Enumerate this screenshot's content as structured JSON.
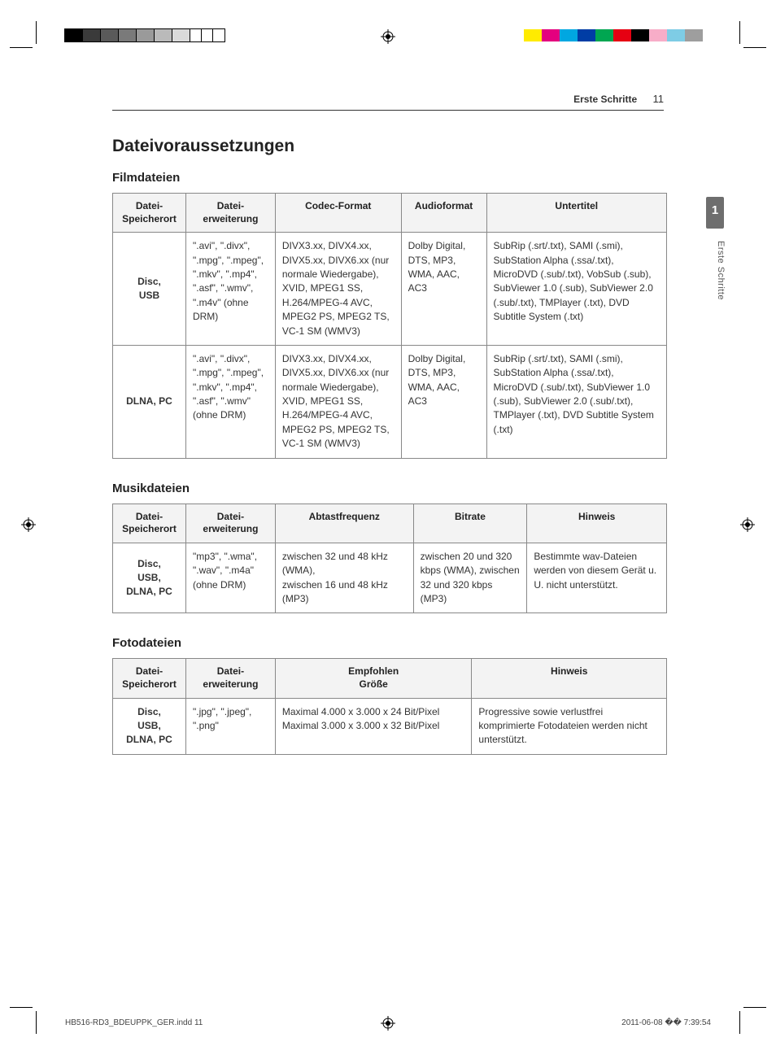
{
  "header": {
    "section": "Erste Schritte",
    "page_number": "11"
  },
  "side_tab": {
    "number": "1",
    "label": "Erste Schritte"
  },
  "title": "Dateivoraussetzungen",
  "film": {
    "heading": "Filmdateien",
    "columns": [
      "Datei-\nSpeicherort",
      "Datei-\nerweiterung",
      "Codec-Format",
      "Audioformat",
      "Untertitel"
    ],
    "rows": [
      {
        "loc": "Disc,\nUSB",
        "ext": "\".avi\", \".divx\", \".mpg\", \".mpeg\", \".mkv\", \".mp4\", \".asf\", \".wmv\", \".m4v\" (ohne DRM)",
        "codec": "DIVX3.xx, DIVX4.xx, DIVX5.xx, DIVX6.xx (nur normale Wiedergabe), XVID, MPEG1 SS, H.264/MPEG-4 AVC, MPEG2 PS, MPEG2 TS, VC-1 SM (WMV3)",
        "audio": "Dolby Digital, DTS, MP3, WMA, AAC, AC3",
        "sub": "SubRip (.srt/.txt), SAMI (.smi), SubStation Alpha (.ssa/.txt), MicroDVD (.sub/.txt), VobSub (.sub), SubViewer 1.0 (.sub), SubViewer 2.0 (.sub/.txt), TMPlayer (.txt), DVD Subtitle System (.txt)"
      },
      {
        "loc": "DLNA, PC",
        "ext": "\".avi\", \".divx\", \".mpg\", \".mpeg\", \".mkv\", \".mp4\", \".asf\", \".wmv\" (ohne DRM)",
        "codec": "DIVX3.xx, DIVX4.xx, DIVX5.xx, DIVX6.xx (nur normale Wiedergabe), XVID, MPEG1 SS, H.264/MPEG-4 AVC, MPEG2 PS, MPEG2 TS, VC-1 SM (WMV3)",
        "audio": "Dolby Digital, DTS, MP3, WMA, AAC, AC3",
        "sub": "SubRip (.srt/.txt), SAMI (.smi), SubStation Alpha (.ssa/.txt), MicroDVD (.sub/.txt), SubViewer 1.0 (.sub), SubViewer 2.0 (.sub/.txt), TMPlayer (.txt), DVD Subtitle System (.txt)"
      }
    ]
  },
  "music": {
    "heading": "Musikdateien",
    "columns": [
      "Datei-\nSpeicherort",
      "Datei-\nerweiterung",
      "Abtastfrequenz",
      "Bitrate",
      "Hinweis"
    ],
    "rows": [
      {
        "loc": "Disc,\nUSB,\nDLNA, PC",
        "ext": "\"mp3\", \".wma\", \".wav\", \".m4a\" (ohne DRM)",
        "freq": "zwischen 32 und 48 kHz (WMA),\nzwischen 16 und 48 kHz (MP3)",
        "bitrate": "zwischen 20 und 320 kbps (WMA), zwischen 32 und 320 kbps (MP3)",
        "note": "Bestimmte wav-Dateien werden von diesem Gerät u. U. nicht unterstützt."
      }
    ]
  },
  "photo": {
    "heading": "Fotodateien",
    "columns": [
      "Datei-\nSpeicherort",
      "Datei-\nerweiterung",
      "Empfohlen\nGröße",
      "Hinweis"
    ],
    "rows": [
      {
        "loc": "Disc,\nUSB,\nDLNA, PC",
        "ext": "\".jpg\", \".jpeg\", \".png\"",
        "size": "Maximal 4.000 x 3.000 x 24 Bit/Pixel\nMaximal 3.000 x 3.000 x 32 Bit/Pixel",
        "note": "Progressive sowie verlustfrei komprimierte Fotodateien werden nicht unterstützt."
      }
    ]
  },
  "swatches_left": [
    "#000000",
    "#3a3a3a",
    "#5a5a5a",
    "#7a7a7a",
    "#9a9a9a",
    "#bababa",
    "#dadada",
    "#ffffff",
    "#ffffff",
    "#ffffff"
  ],
  "swatches_right": [
    "#ffffff",
    "#ffeb00",
    "#e4007f",
    "#00a7e1",
    "#003da5",
    "#00a651",
    "#e60012",
    "#000000",
    "#f7adc8",
    "#7ecce5",
    "#9e9e9e"
  ],
  "footer": {
    "left": "HB516-RD3_BDEUPPK_GER.indd   11",
    "right": "2011-06-08   �� 7:39:54"
  }
}
